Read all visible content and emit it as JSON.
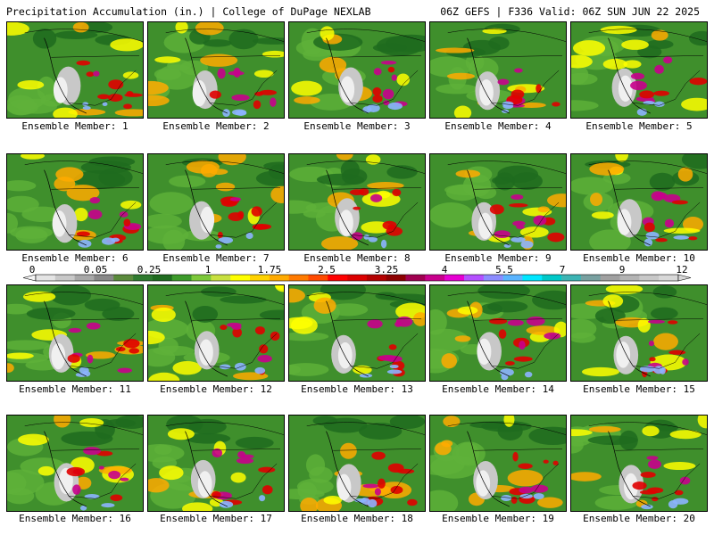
{
  "header": {
    "left": "Precipitation Accumulation (in.) | College of DuPage NEXLAB",
    "right": "06Z GEFS | F336 Valid: 06Z SUN JUN 22 2025"
  },
  "members": [
    "Ensemble Member: 1",
    "Ensemble Member: 2",
    "Ensemble Member: 3",
    "Ensemble Member: 4",
    "Ensemble Member: 5",
    "Ensemble Member: 6",
    "Ensemble Member: 7",
    "Ensemble Member: 8",
    "Ensemble Member: 9",
    "Ensemble Member: 10",
    "Ensemble Member: 11",
    "Ensemble Member: 12",
    "Ensemble Member: 13",
    "Ensemble Member: 14",
    "Ensemble Member: 15",
    "Ensemble Member: 16",
    "Ensemble Member: 17",
    "Ensemble Member: 18",
    "Ensemble Member: 19",
    "Ensemble Member: 20"
  ],
  "colorbar": {
    "tick_labels": [
      "0",
      "0.05",
      "0.25",
      "1",
      "1.75",
      "2.5",
      "3.25",
      "4",
      "5.5",
      "7",
      "9",
      "12"
    ],
    "colors": [
      "#e4e4e4",
      "#c8c8c8",
      "#a8a8a8",
      "#888888",
      "#5a8a3c",
      "#2f7a2f",
      "#1f6b1f",
      "#3c9a2a",
      "#7cc83a",
      "#c8e040",
      "#ffff00",
      "#ffd200",
      "#ffaa00",
      "#ff7a00",
      "#ff4a00",
      "#ff0000",
      "#dc0000",
      "#b40000",
      "#8c0000",
      "#a00050",
      "#c8008c",
      "#e600d2",
      "#b450ff",
      "#8c8cff",
      "#5ab4ff",
      "#00e6ff",
      "#00c8c8",
      "#3cb4b4",
      "#78a0a0",
      "#a0a0a0",
      "#b4b4b4",
      "#c8c8c8",
      "#d8d8d8"
    ]
  }
}
